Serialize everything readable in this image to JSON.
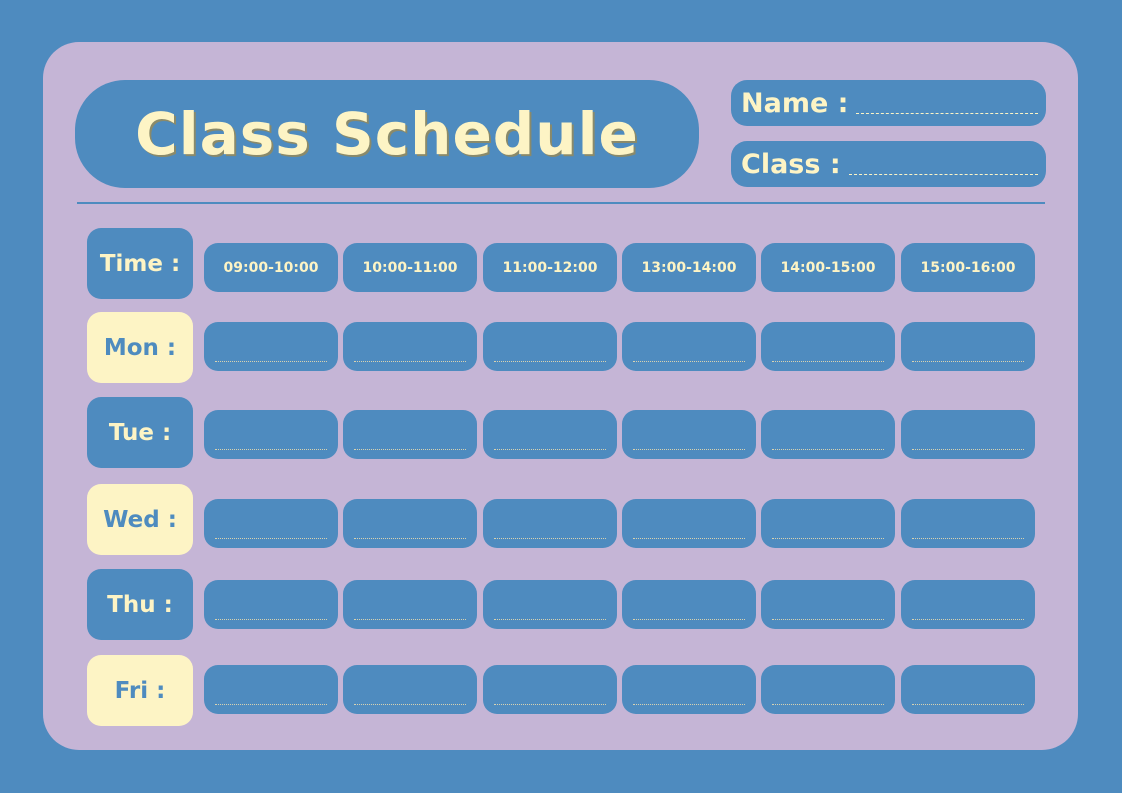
{
  "title": "Class Schedule",
  "fields": {
    "name_label": "Name :",
    "class_label": "Class :"
  },
  "time_label": "Time :",
  "time_slots": [
    "09:00-10:00",
    "10:00-11:00",
    "11:00-12:00",
    "13:00-14:00",
    "14:00-15:00",
    "15:00-16:00"
  ],
  "days": [
    {
      "label": "Mon :",
      "style": "cream"
    },
    {
      "label": "Tue :",
      "style": "blue"
    },
    {
      "label": "Wed :",
      "style": "cream"
    },
    {
      "label": "Thu :",
      "style": "blue"
    },
    {
      "label": "Fri :",
      "style": "cream"
    }
  ],
  "colors": {
    "background": "#4e8bbf",
    "card": "#c5b5d6",
    "cream": "#fdf4c5",
    "blue": "#4e8bbf"
  }
}
